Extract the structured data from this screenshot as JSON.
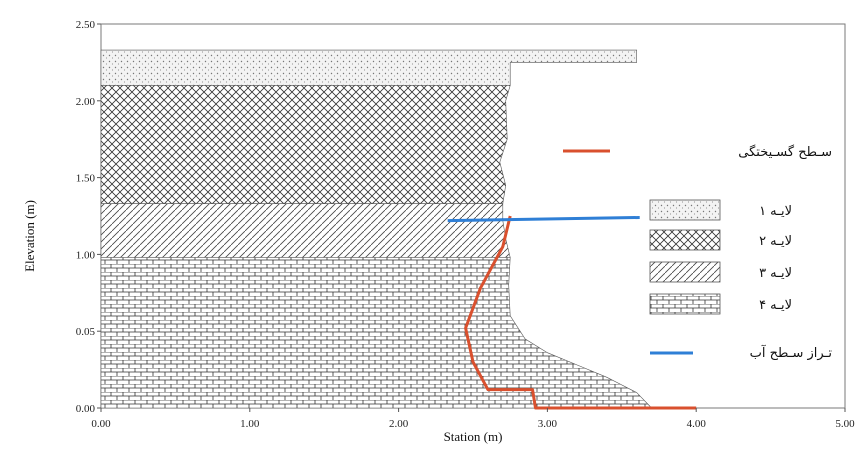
{
  "chart_data": {
    "type": "area",
    "xlabel": "Station (m)",
    "ylabel": "Elevation (m)",
    "xlim": [
      0,
      5
    ],
    "ylim": [
      0,
      2.5
    ],
    "x_ticks": [
      "0.00",
      "1.00",
      "2.00",
      "3.00",
      "4.00",
      "5.00"
    ],
    "y_ticks": [
      "0.00",
      "0.05",
      "1.00",
      "1.50",
      "2.00",
      "2.50"
    ],
    "grid": false,
    "legend_position": "right",
    "layers": [
      {
        "name": "لایـه ۱",
        "pattern": "dots",
        "points": [
          [
            0,
            2.1
          ],
          [
            2.75,
            2.1
          ],
          [
            2.75,
            2.25
          ],
          [
            3.6,
            2.25
          ],
          [
            3.6,
            2.33
          ],
          [
            0,
            2.33
          ]
        ]
      },
      {
        "name": "لایـه ۲",
        "pattern": "crosshatch",
        "points": [
          [
            0,
            1.33
          ],
          [
            2.7,
            1.33
          ],
          [
            2.72,
            1.45
          ],
          [
            2.68,
            1.6
          ],
          [
            2.73,
            1.75
          ],
          [
            2.72,
            2.0
          ],
          [
            2.75,
            2.1
          ],
          [
            0,
            2.1
          ]
        ]
      },
      {
        "name": "لایـه ۳",
        "pattern": "diagonal",
        "points": [
          [
            0,
            0.98
          ],
          [
            2.75,
            0.98
          ],
          [
            2.72,
            1.1
          ],
          [
            2.7,
            1.22
          ],
          [
            2.7,
            1.33
          ],
          [
            0,
            1.33
          ]
        ]
      },
      {
        "name": "لایـه ۴",
        "pattern": "brick",
        "points": [
          [
            0,
            0
          ],
          [
            3.7,
            0
          ],
          [
            3.6,
            0.1
          ],
          [
            3.4,
            0.2
          ],
          [
            3.2,
            0.28
          ],
          [
            3.0,
            0.36
          ],
          [
            2.85,
            0.45
          ],
          [
            2.75,
            0.6
          ],
          [
            2.74,
            0.8
          ],
          [
            2.75,
            0.98
          ],
          [
            0,
            0.98
          ]
        ]
      }
    ],
    "failure_surface": {
      "name": "سـطح گسـیختگی",
      "color": "#d9502e",
      "points": [
        [
          2.75,
          1.25
        ],
        [
          2.7,
          1.05
        ],
        [
          2.55,
          0.78
        ],
        [
          2.45,
          0.52
        ],
        [
          2.5,
          0.3
        ],
        [
          2.6,
          0.12
        ],
        [
          2.9,
          0.12
        ],
        [
          2.92,
          0.0
        ],
        [
          4.0,
          0.0
        ]
      ]
    },
    "water_level": {
      "name": "تـراز سـطح آب",
      "color": "#2f7fd6",
      "points": [
        [
          2.33,
          1.22
        ],
        [
          3.62,
          1.24
        ]
      ]
    }
  }
}
